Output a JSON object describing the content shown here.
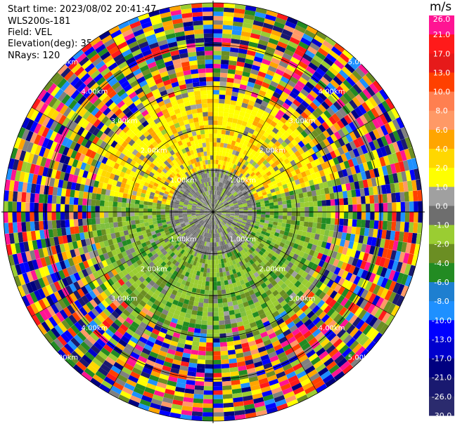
{
  "header": {
    "start_time": "Start time: 2023/08/02 20:41:47",
    "instrument": "WLS200s-181",
    "field": "Field: VEL",
    "elevation": "Elevation(deg): 35.30",
    "nrays": "NRays: 120"
  },
  "chart_data": {
    "type": "heatmap",
    "projection": "polar-ppi",
    "field": "VEL",
    "nrays": 120,
    "elevation_deg": 35.3,
    "range_rings_km": [
      1.0,
      2.0,
      3.0,
      4.0,
      5.0
    ],
    "ring_label_texts": [
      "1.00km",
      "2.00km",
      "3.00km",
      "4.00km",
      "5.00km"
    ],
    "azimuth_spokes_deg": [
      0,
      30,
      60,
      90,
      120,
      150,
      180,
      210,
      240,
      270,
      300,
      330
    ],
    "colorbar": {
      "unit": "m/s",
      "tick_labels": [
        "26.0",
        "21.0",
        "17.0",
        "13.0",
        "10.0",
        "8.0",
        "6.0",
        "4.0",
        "2.0",
        "1.0",
        "0.0",
        "-1.0",
        "-2.0",
        "-4.0",
        "-6.0",
        "-8.0",
        "-10.0",
        "-13.0",
        "-17.0",
        "-21.0",
        "-26.0",
        "-30.0"
      ],
      "colors": [
        "#ff1493",
        "#ff1a1a",
        "#e61a1a",
        "#ff4000",
        "#ff7f50",
        "#ff9966",
        "#ffa500",
        "#ffd700",
        "#ffff00",
        "#a0a0a0",
        "#6e6e6e",
        "#9acd32",
        "#6b8e23",
        "#228b22",
        "#1e7fd0",
        "#1e90ff",
        "#0000ff",
        "#0000cd",
        "#000080",
        "#191970",
        "#2b2b6e"
      ]
    },
    "pattern": {
      "center_km": 1.0,
      "center_colors": [
        "#808080",
        "#7a7a7a",
        "#6e6e6e",
        "#9acd32",
        "#a0a0a0"
      ],
      "north_inner": [
        "#ffff00",
        "#ffff00",
        "#ffd700",
        "#ffff00",
        "#ffa500"
      ],
      "south_inner": [
        "#9acd32",
        "#9acd32",
        "#6b8e23",
        "#228b22",
        "#7fbf3f"
      ],
      "noise_colors": [
        "#ff1493",
        "#ff1a1a",
        "#ff4000",
        "#ff9966",
        "#ffa500",
        "#ffd700",
        "#ffff00",
        "#9acd32",
        "#6b8e23",
        "#228b22",
        "#1e90ff",
        "#0000ff",
        "#0000cd",
        "#000080",
        "#191970",
        "#808080"
      ]
    }
  }
}
